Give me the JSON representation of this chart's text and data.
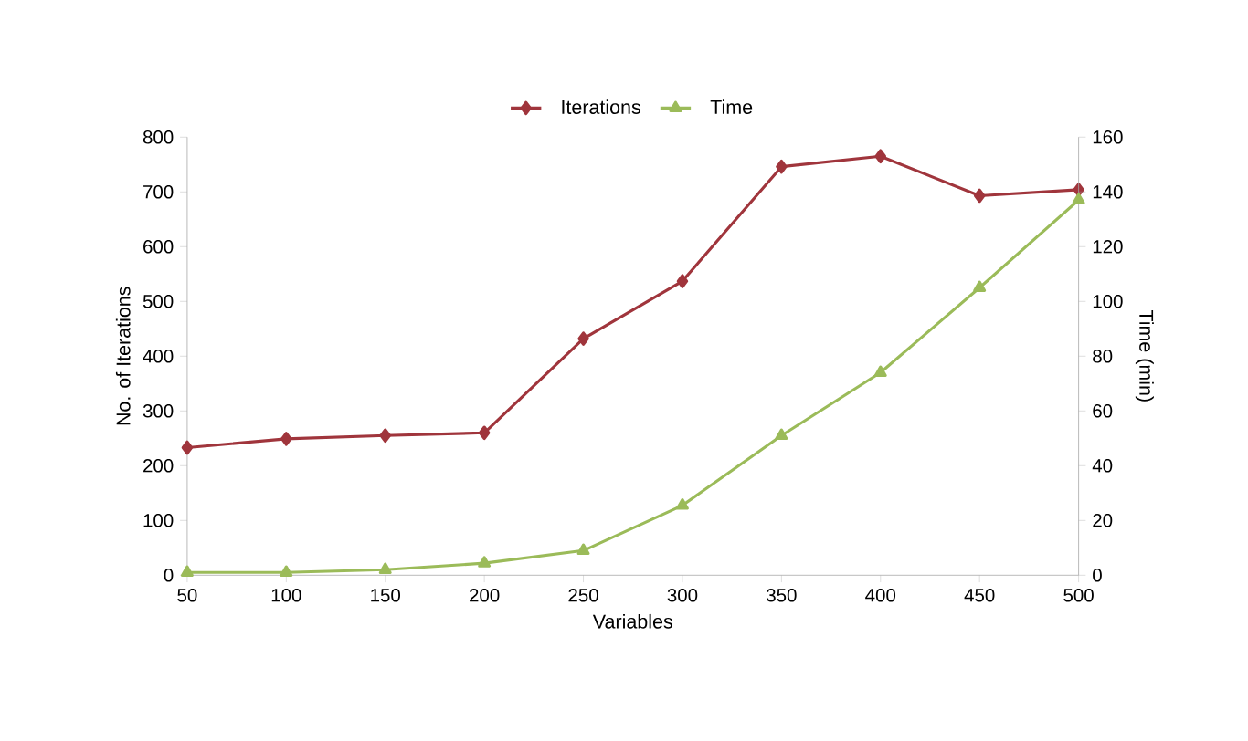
{
  "chart_data": {
    "type": "line",
    "xlabel": "Variables",
    "ylabel": "No. of Iterations",
    "y2label": "Time (min)",
    "categories": [
      "50",
      "100",
      "150",
      "200",
      "250",
      "300",
      "350",
      "400",
      "450",
      "500"
    ],
    "series": [
      {
        "name": "Iterations",
        "color": "#a0353c",
        "marker": "diamond",
        "values": [
          233,
          249,
          255,
          260,
          432,
          537,
          746,
          765,
          693,
          704
        ]
      },
      {
        "name": "Time",
        "color": "#9bbb59",
        "marker": "triangle",
        "axis": "y2",
        "values": [
          1,
          1,
          2,
          4.4,
          9,
          25.5,
          51,
          74,
          105,
          137
        ]
      }
    ],
    "ylim": [
      0,
      800
    ],
    "yticks": [
      0,
      100,
      200,
      300,
      400,
      500,
      600,
      700,
      800
    ],
    "y2lim": [
      0,
      160
    ],
    "y2ticks": [
      0,
      20,
      40,
      60,
      80,
      100,
      120,
      140,
      160
    ],
    "grid": false,
    "legend": "top",
    "line_style": "solid"
  }
}
